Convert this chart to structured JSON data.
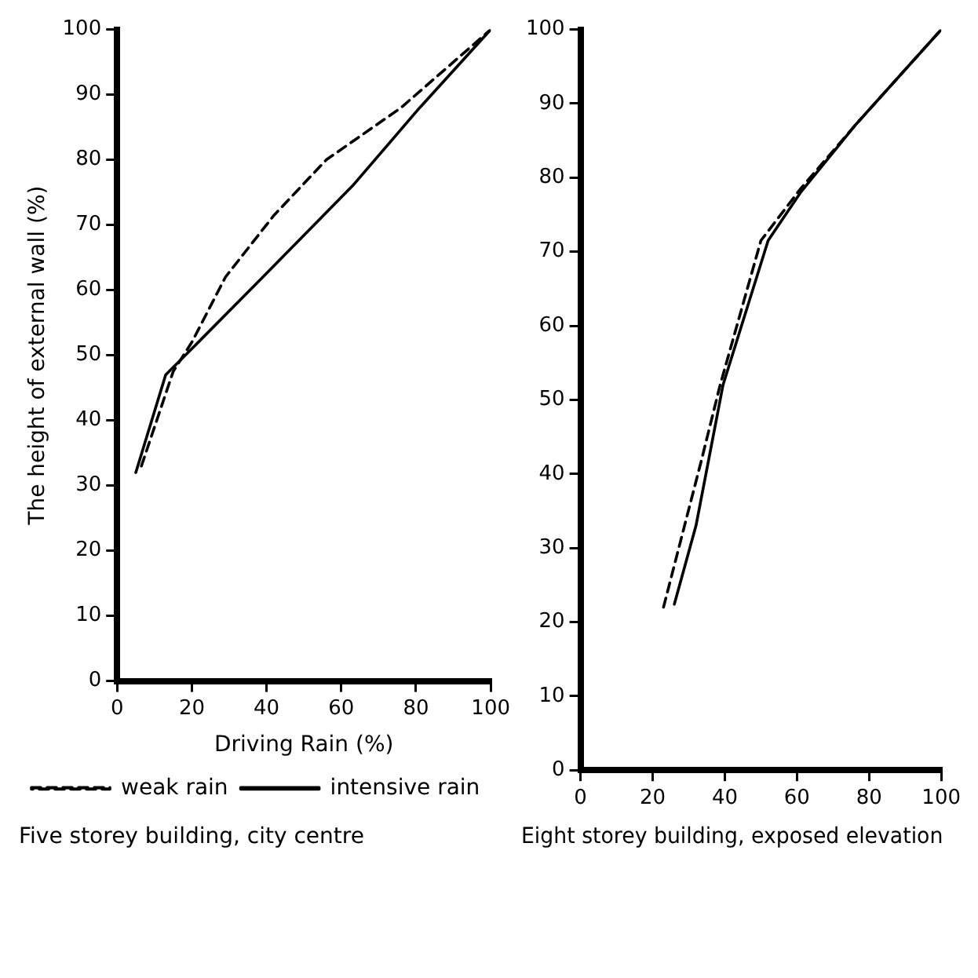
{
  "chart_data": [
    {
      "type": "line",
      "ylabel": "The height of external wall (%)",
      "xlabel": "Driving Rain (%)",
      "subtitle": "Five storey building, city centre",
      "xlim": [
        0,
        100
      ],
      "xticks": [
        0,
        20,
        40,
        60,
        80,
        100
      ],
      "ylim": [
        0,
        100
      ],
      "yticks": [
        0,
        10,
        20,
        30,
        40,
        50,
        60,
        70,
        80,
        90,
        100
      ],
      "grid": false,
      "legend": "bottom",
      "marker": "none",
      "series": [
        {
          "name": "weak rain",
          "color": "#000000",
          "line_style": "dashed",
          "x": [
            6.5,
            15,
            20,
            29,
            42,
            56,
            76,
            100
          ],
          "values": [
            33,
            47.5,
            52,
            62,
            71.5,
            80,
            88,
            100
          ]
        },
        {
          "name": "intensive rain",
          "color": "#000000",
          "line_style": "solid",
          "x": [
            5,
            13,
            20,
            39,
            63,
            81,
            100
          ],
          "values": [
            32,
            47,
            51,
            62,
            76,
            88,
            100
          ]
        }
      ]
    },
    {
      "type": "line",
      "subtitle": "Eight storey building, exposed elevation",
      "xlim": [
        0,
        100
      ],
      "xticks": [
        0,
        20,
        40,
        60,
        80,
        100
      ],
      "ylim": [
        0,
        100
      ],
      "yticks": [
        0,
        10,
        20,
        30,
        40,
        50,
        60,
        70,
        80,
        90,
        100
      ],
      "grid": false,
      "legend": false,
      "marker": "none",
      "series": [
        {
          "color": "#000000",
          "line_style": "dashed",
          "x": [
            23,
            33.6,
            38.7,
            50,
            61,
            76,
            100
          ],
          "values": [
            22,
            42,
            52,
            71.5,
            78.5,
            87,
            100
          ]
        },
        {
          "color": "#000000",
          "line_style": "solid",
          "x": [
            26,
            32,
            39.5,
            52,
            61,
            76,
            100
          ],
          "values": [
            22.4,
            33,
            52,
            71.5,
            78,
            87,
            100
          ]
        }
      ]
    }
  ]
}
